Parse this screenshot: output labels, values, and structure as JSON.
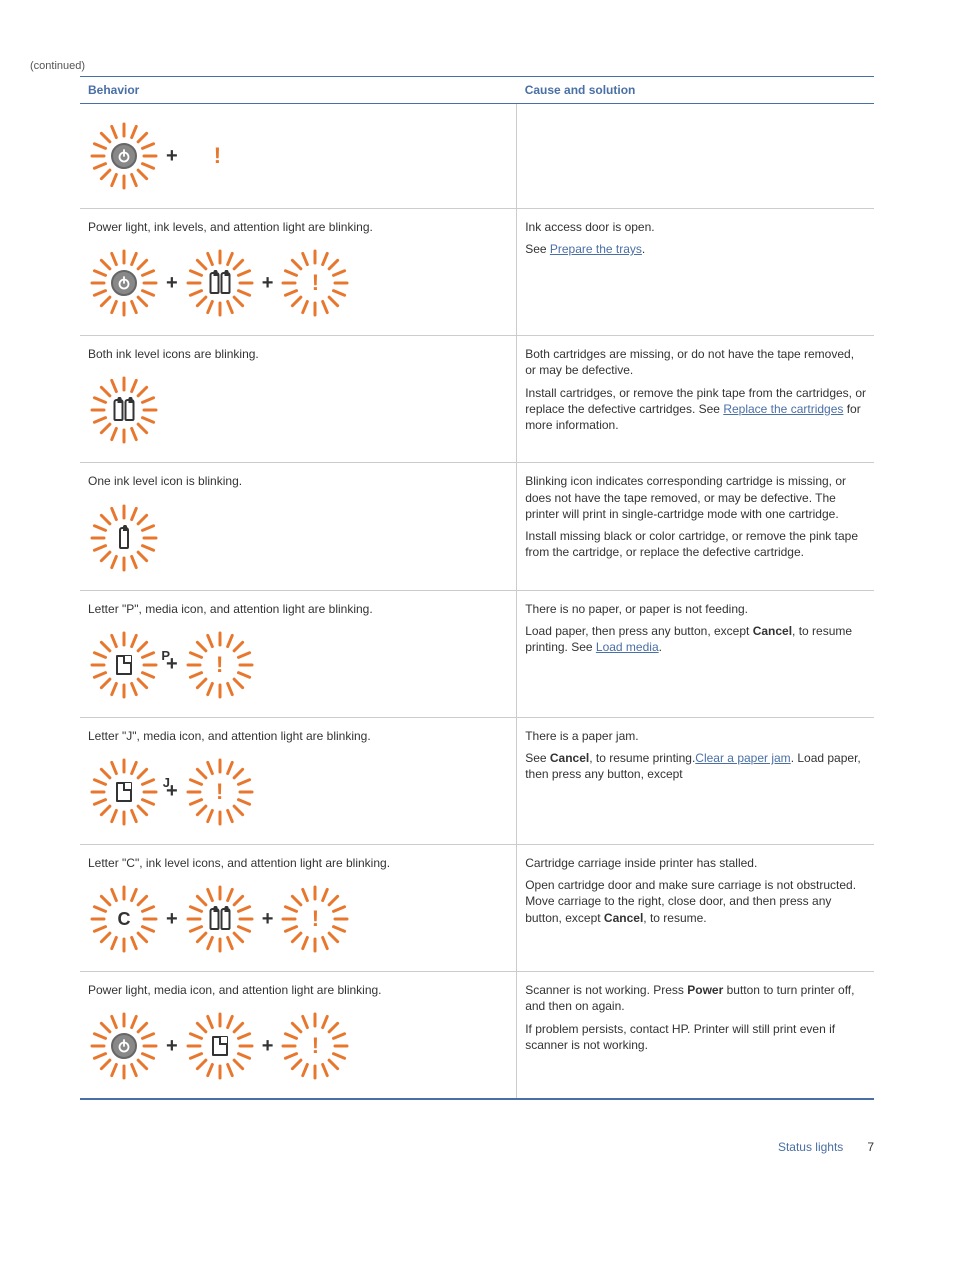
{
  "continued_label": "(continued)",
  "headers": {
    "behavior": "Behavior",
    "cause": "Cause and solution"
  },
  "footer": {
    "label": "Status lights",
    "page": "7"
  },
  "colors": {
    "accent": "#4a6fa5",
    "orange": "#e8772e",
    "text": "#333"
  },
  "rows": [
    {
      "behavior": "",
      "has_icons": true,
      "icons": [
        {
          "type": "burst",
          "glyph": "power"
        },
        {
          "type": "plus"
        },
        {
          "type": "plain-attn"
        }
      ],
      "solution": []
    },
    {
      "behavior": "Power light, ink levels, and attention light are blinking.",
      "has_icons": true,
      "icons": [
        {
          "type": "burst",
          "glyph": "power"
        },
        {
          "type": "plus"
        },
        {
          "type": "burst",
          "glyph": "ink"
        },
        {
          "type": "plus"
        },
        {
          "type": "burst",
          "glyph": "attn"
        }
      ],
      "solution": [
        {
          "text": "Ink access door is open."
        },
        {
          "text": "See ",
          "link": "Prepare the trays",
          "after": "."
        }
      ]
    },
    {
      "behavior": "Both ink level icons are blinking.",
      "has_icons": true,
      "icons": [
        {
          "type": "burst",
          "glyph": "ink"
        }
      ],
      "solution": [
        {
          "text": "Both cartridges are missing, or do not have the tape removed, or may be defective."
        },
        {
          "text": "Install cartridges, or remove the pink tape from the cartridges, or replace the defective cartridges. See ",
          "link": "Replace the cartridges",
          "after": " for more information."
        }
      ]
    },
    {
      "behavior": "One ink level icon is blinking.",
      "has_icons": true,
      "icons": [
        {
          "type": "burst",
          "glyph": "ink-one"
        }
      ],
      "solution": [
        {
          "text": "Blinking icon indicates corresponding cartridge is missing, or does not have the tape removed, or may be defective. The printer will print in single-cartridge mode with one cartridge."
        },
        {
          "text": "Install missing black or color cartridge, or remove the pink tape from the cartridge, or replace the defective cartridge."
        }
      ]
    },
    {
      "behavior": "Letter \"P\", media icon, and attention light are blinking.",
      "has_icons": true,
      "icons": [
        {
          "type": "burst",
          "glyph": "media-P"
        },
        {
          "type": "plus"
        },
        {
          "type": "burst",
          "glyph": "attn"
        }
      ],
      "solution": [
        {
          "text": "There is no paper, or paper is not feeding."
        },
        {
          "text": "Load paper, then press any button, except ",
          "bold": "Cancel",
          "after2": ", to resume printing. See ",
          "link": "Load media",
          "after": "."
        }
      ]
    },
    {
      "behavior": "Letter \"J\", media icon, and attention light are blinking.",
      "has_icons": true,
      "icons": [
        {
          "type": "burst",
          "glyph": "media-J"
        },
        {
          "type": "plus"
        },
        {
          "type": "burst",
          "glyph": "attn"
        }
      ],
      "solution": [
        {
          "text": "There is a paper jam."
        },
        {
          "text": "See ",
          "link": "Clear a paper jam",
          "after": ". Load paper, then press any button, except ",
          "bold": "Cancel",
          "after2": ", to resume printing."
        }
      ]
    },
    {
      "behavior": "Letter \"C\", ink level icons, and attention light are blinking.",
      "has_icons": true,
      "icons": [
        {
          "type": "burst",
          "glyph": "letter-C"
        },
        {
          "type": "plus"
        },
        {
          "type": "burst",
          "glyph": "ink"
        },
        {
          "type": "plus"
        },
        {
          "type": "burst",
          "glyph": "attn"
        }
      ],
      "solution": [
        {
          "text": "Cartridge carriage inside printer has stalled."
        },
        {
          "text": "Open cartridge door and make sure carriage is not obstructed. Move carriage to the right, close door, and then press any button, except ",
          "bold": "Cancel",
          "after2": ", to resume."
        }
      ]
    },
    {
      "behavior": "Power light, media icon, and attention light are blinking.",
      "has_icons": true,
      "icons": [
        {
          "type": "burst",
          "glyph": "power"
        },
        {
          "type": "plus"
        },
        {
          "type": "burst",
          "glyph": "media"
        },
        {
          "type": "plus"
        },
        {
          "type": "burst",
          "glyph": "attn"
        }
      ],
      "solution": [
        {
          "text": "Scanner is not working. Press ",
          "bold": "Power",
          "after2": " button to turn printer off, and then on again."
        },
        {
          "text": "If problem persists, contact HP. Printer will still print even if scanner is not working."
        }
      ]
    }
  ]
}
